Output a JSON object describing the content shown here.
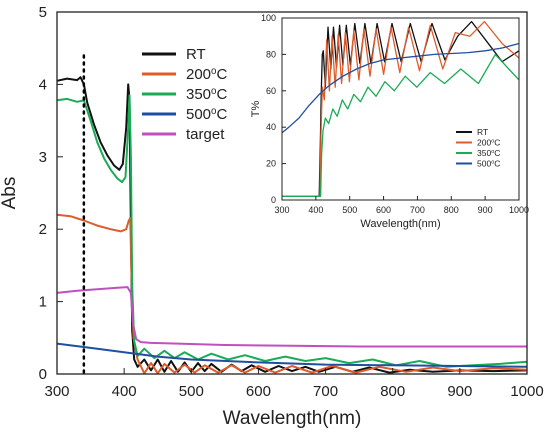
{
  "chart_data": [
    {
      "type": "line",
      "xlabel": "Wavelength(nm)",
      "ylabel": "Abs",
      "xlim": [
        300,
        1000
      ],
      "ylim": [
        0,
        5
      ],
      "xticks": [
        300,
        400,
        500,
        600,
        700,
        800,
        900,
        1000
      ],
      "yticks": [
        0,
        1,
        2,
        3,
        4,
        5
      ],
      "legend_position": "top-left",
      "reference_line": {
        "x": 340,
        "style": "dotted",
        "color": "#000000"
      },
      "series": [
        {
          "name": "RT",
          "color": "#111111",
          "x": [
            300,
            315,
            330,
            335,
            340,
            345,
            355,
            365,
            375,
            385,
            393,
            398,
            403,
            406,
            408,
            410,
            412,
            415,
            420,
            430,
            440,
            450,
            460,
            470,
            480,
            490,
            500,
            510,
            520,
            530,
            545,
            560,
            575,
            590,
            610,
            630,
            650,
            670,
            690,
            715,
            740,
            765,
            795,
            825,
            860,
            900,
            950,
            1000
          ],
          "y": [
            4.05,
            4.08,
            4.06,
            4.1,
            4.0,
            3.75,
            3.45,
            3.2,
            3.02,
            2.88,
            2.82,
            2.9,
            3.4,
            4.0,
            3.8,
            2.0,
            0.6,
            0.2,
            0.1,
            0.2,
            0.05,
            0.2,
            0.03,
            0.18,
            0.03,
            0.16,
            0.03,
            0.15,
            0.04,
            0.14,
            0.03,
            0.13,
            0.04,
            0.12,
            0.03,
            0.11,
            0.04,
            0.1,
            0.03,
            0.1,
            0.03,
            0.09,
            0.02,
            0.06,
            0.03,
            0.05,
            0.04,
            0.05
          ]
        },
        {
          "name": "200°C",
          "color": "#e05a2b",
          "x": [
            300,
            320,
            340,
            360,
            380,
            395,
            403,
            407,
            409,
            411,
            414,
            420,
            430,
            440,
            450,
            460,
            475,
            490,
            505,
            520,
            540,
            560,
            580,
            600,
            625,
            650,
            680,
            710,
            745,
            780,
            820,
            860,
            900,
            950,
            1000
          ],
          "y": [
            2.2,
            2.18,
            2.12,
            2.05,
            2.0,
            1.97,
            2.0,
            2.12,
            2.15,
            1.4,
            0.5,
            0.2,
            0.01,
            0.15,
            0.01,
            0.14,
            0.02,
            0.13,
            0.02,
            0.12,
            0.02,
            0.12,
            0.02,
            0.11,
            0.02,
            0.11,
            0.02,
            0.11,
            0.02,
            0.1,
            0.03,
            0.09,
            0.04,
            0.08,
            0.06
          ]
        },
        {
          "name": "350°C",
          "color": "#1aab55",
          "x": [
            300,
            315,
            330,
            340,
            350,
            360,
            370,
            380,
            390,
            397,
            402,
            406,
            408,
            410,
            412,
            415,
            420,
            430,
            445,
            460,
            475,
            490,
            510,
            530,
            555,
            580,
            610,
            640,
            670,
            700,
            735,
            770,
            805,
            840,
            880,
            920,
            960,
            1000
          ],
          "y": [
            3.78,
            3.8,
            3.76,
            3.78,
            3.5,
            3.2,
            2.98,
            2.82,
            2.7,
            2.65,
            2.72,
            3.4,
            3.85,
            3.0,
            1.2,
            0.45,
            0.25,
            0.35,
            0.22,
            0.32,
            0.22,
            0.3,
            0.2,
            0.28,
            0.2,
            0.26,
            0.18,
            0.24,
            0.18,
            0.22,
            0.15,
            0.2,
            0.12,
            0.18,
            0.1,
            0.12,
            0.14,
            0.17
          ]
        },
        {
          "name": "500°C",
          "color": "#1f4fa0",
          "x": [
            300,
            350,
            400,
            450,
            500,
            600,
            700,
            800,
            900,
            1000
          ],
          "y": [
            0.42,
            0.36,
            0.3,
            0.24,
            0.2,
            0.16,
            0.13,
            0.12,
            0.11,
            0.1
          ]
        },
        {
          "name": "target",
          "color": "#c04fbf",
          "x": [
            300,
            330,
            360,
            390,
            405,
            410,
            413,
            418,
            425,
            440,
            480,
            550,
            650,
            750,
            850,
            1000
          ],
          "y": [
            1.12,
            1.15,
            1.17,
            1.19,
            1.2,
            1.12,
            0.7,
            0.48,
            0.44,
            0.43,
            0.42,
            0.4,
            0.39,
            0.38,
            0.38,
            0.38
          ]
        }
      ]
    },
    {
      "type": "line",
      "xlabel": "Wavelength(nm)",
      "ylabel": "T%",
      "xlim": [
        300,
        1000
      ],
      "ylim": [
        0,
        100
      ],
      "xticks": [
        300,
        400,
        500,
        600,
        700,
        800,
        900,
        1000
      ],
      "yticks": [
        0,
        20,
        40,
        60,
        80,
        100
      ],
      "legend_position": "bottom-right",
      "series": [
        {
          "name": "RT",
          "color": "#111111",
          "x": [
            300,
            350,
            400,
            410,
            413,
            416,
            419,
            422,
            428,
            436,
            444,
            452,
            461,
            470,
            480,
            490,
            502,
            515,
            530,
            545,
            563,
            581,
            603,
            625,
            652,
            679,
            711,
            743,
            781,
            819,
            860,
            901,
            950,
            1000
          ],
          "y": [
            2,
            2,
            2,
            2,
            30,
            60,
            80,
            82,
            62,
            95,
            72,
            95,
            73,
            96,
            74,
            96,
            74,
            97,
            75,
            97,
            75,
            97,
            76,
            97,
            76,
            97,
            76,
            97,
            77,
            90,
            98,
            88,
            76,
            82
          ]
        },
        {
          "name": "200°C",
          "color": "#e05a2b",
          "x": [
            300,
            350,
            400,
            412,
            415,
            419,
            425,
            432,
            440,
            448,
            457,
            466,
            476,
            487,
            499,
            512,
            527,
            542,
            560,
            578,
            600,
            622,
            648,
            674,
            706,
            738,
            775,
            812,
            855,
            898,
            950,
            1000
          ],
          "y": [
            2,
            2,
            2,
            2,
            35,
            62,
            55,
            88,
            60,
            90,
            62,
            91,
            64,
            92,
            65,
            93,
            66,
            94,
            68,
            94,
            69,
            95,
            70,
            95,
            71,
            96,
            72,
            92,
            90,
            98,
            86,
            78
          ]
        },
        {
          "name": "350°C",
          "color": "#1aab55",
          "x": [
            300,
            350,
            400,
            414,
            417,
            421,
            428,
            438,
            450,
            463,
            478,
            494,
            512,
            532,
            554,
            578,
            604,
            632,
            664,
            698,
            738,
            780,
            828,
            880,
            930,
            970,
            1000
          ],
          "y": [
            2,
            2,
            2,
            2,
            25,
            38,
            45,
            42,
            50,
            46,
            55,
            50,
            58,
            54,
            62,
            57,
            65,
            60,
            68,
            62,
            70,
            64,
            72,
            64,
            80,
            72,
            66
          ]
        },
        {
          "name": "500°C",
          "color": "#1f4fa0",
          "x": [
            300,
            320,
            350,
            380,
            410,
            440,
            480,
            520,
            560,
            600,
            650,
            700,
            750,
            800,
            850,
            900,
            950,
            1000
          ],
          "y": [
            37,
            40,
            45,
            52,
            58,
            63,
            68,
            72,
            75,
            77,
            78,
            79,
            80,
            80.5,
            81,
            82,
            83.5,
            86
          ]
        }
      ]
    }
  ]
}
